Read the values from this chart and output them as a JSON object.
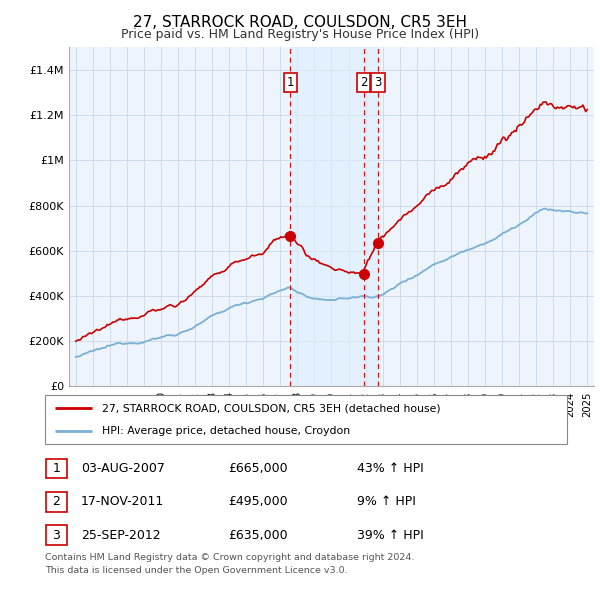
{
  "title": "27, STARROCK ROAD, COULSDON, CR5 3EH",
  "subtitle": "Price paid vs. HM Land Registry's House Price Index (HPI)",
  "ylim": [
    0,
    1500000
  ],
  "yticks": [
    0,
    200000,
    400000,
    600000,
    800000,
    1000000,
    1200000,
    1400000
  ],
  "ytick_labels": [
    "£0",
    "£200K",
    "£400K",
    "£600K",
    "£800K",
    "£1M",
    "£1.2M",
    "£1.4M"
  ],
  "xmin": 1994.6,
  "xmax": 2025.4,
  "red_color": "#cc0000",
  "blue_color": "#7ab0d4",
  "shade_color": "#ddeeff",
  "dashed_color": "#cc0000",
  "sale_dates": [
    2007.59,
    2011.88,
    2012.73
  ],
  "sale_prices": [
    665000,
    495000,
    635000
  ],
  "sale_labels": [
    "1",
    "2",
    "3"
  ],
  "legend_red": "27, STARROCK ROAD, COULSDON, CR5 3EH (detached house)",
  "legend_blue": "HPI: Average price, detached house, Croydon",
  "table_rows": [
    [
      "1",
      "03-AUG-2007",
      "£665,000",
      "43% ↑ HPI"
    ],
    [
      "2",
      "17-NOV-2011",
      "£495,000",
      "9% ↑ HPI"
    ],
    [
      "3",
      "25-SEP-2012",
      "£635,000",
      "39% ↑ HPI"
    ]
  ],
  "footnote1": "Contains HM Land Registry data © Crown copyright and database right 2024.",
  "footnote2": "This data is licensed under the Open Government Licence v3.0.",
  "background_color": "#ffffff",
  "plot_bg_color": "#eef4fb",
  "grid_color": "#c8d8e8"
}
